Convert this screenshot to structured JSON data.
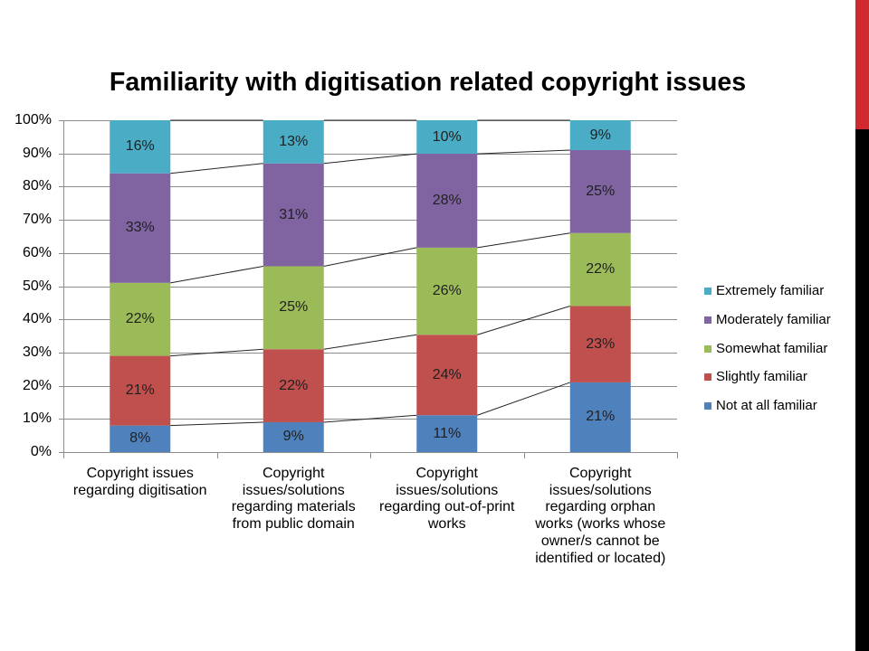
{
  "slide": {
    "accent_top_color": "#D02A2E",
    "accent_bottom_color": "#000000"
  },
  "chart_data": {
    "type": "bar",
    "orientation": "vertical",
    "stacking": "percent",
    "title": "Familiarity with digitisation related copyright issues",
    "categories": [
      "Copyright issues\nregarding digitisation",
      "Copyright\nissues/solutions\nregarding materials\nfrom public domain",
      "Copyright\nissues/solutions\nregarding out-of-print\nworks",
      "Copyright\nissues/solutions\nregarding orphan\nworks (works whose\nowner/s cannot be\nidentified or located)"
    ],
    "series": [
      {
        "name": "Not at all familiar",
        "color": "#4F81BD",
        "values": [
          8,
          9,
          11,
          21
        ]
      },
      {
        "name": "Slightly familiar",
        "color": "#C0504D",
        "values": [
          21,
          22,
          24,
          23
        ]
      },
      {
        "name": "Somewhat familiar",
        "color": "#9BBB59",
        "values": [
          22,
          25,
          26,
          22
        ]
      },
      {
        "name": "Moderately familiar",
        "color": "#8064A2",
        "values": [
          33,
          31,
          28,
          25
        ]
      },
      {
        "name": "Extremely familiar",
        "color": "#4BACC6",
        "values": [
          16,
          13,
          10,
          9
        ]
      }
    ],
    "value_unit": "%",
    "ylim": [
      0,
      100
    ],
    "yticks": [
      0,
      10,
      20,
      30,
      40,
      50,
      60,
      70,
      80,
      90,
      100
    ],
    "ytick_labels": [
      "0%",
      "10%",
      "20%",
      "30%",
      "40%",
      "50%",
      "60%",
      "70%",
      "80%",
      "90%",
      "100%"
    ],
    "grid": true,
    "series_lines": true,
    "legend_position": "right"
  }
}
